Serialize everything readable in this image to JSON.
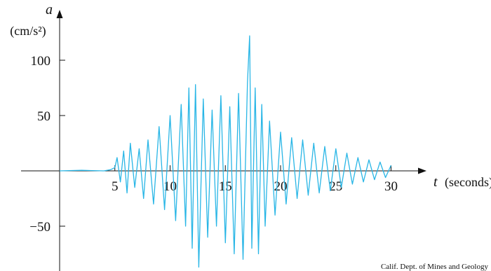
{
  "chart_data": {
    "type": "line",
    "title": "",
    "xlabel": "t",
    "xlabel_unit": "(seconds)",
    "ylabel": "a",
    "ylabel_unit": "(cm/s²)",
    "xlim": [
      -2.8,
      30
    ],
    "ylim": [
      -87,
      123
    ],
    "x_ticks": [
      5,
      10,
      15,
      20,
      25,
      30
    ],
    "y_ticks": [
      100,
      50,
      -50
    ],
    "x_tick_labels": [
      "5",
      "10",
      "15",
      "20",
      "25",
      "30"
    ],
    "y_tick_labels": [
      "100",
      "50",
      "−50"
    ],
    "grid": false,
    "series": [
      {
        "color": "#29b6e6",
        "x": [
          0,
          2,
          4,
          4.6,
          5.0,
          5.2,
          5.5,
          5.8,
          6.1,
          6.4,
          6.8,
          7.2,
          7.6,
          8.0,
          8.5,
          9.0,
          9.5,
          10.0,
          10.5,
          11.0,
          11.4,
          11.7,
          12.0,
          12.3,
          12.6,
          13.0,
          13.4,
          13.8,
          14.2,
          14.6,
          15.0,
          15.4,
          15.8,
          16.2,
          16.6,
          17.0,
          17.2,
          17.4,
          17.7,
          18.0,
          18.3,
          18.6,
          19.0,
          19.5,
          20.0,
          20.5,
          21.0,
          21.5,
          22.0,
          22.5,
          23.0,
          23.5,
          24.0,
          24.5,
          25.0,
          25.5,
          26.0,
          26.5,
          27.0,
          27.5,
          28.0,
          28.5,
          29.0,
          29.5,
          30.0
        ],
        "y": [
          0,
          0.5,
          0,
          1,
          3,
          12,
          -10,
          18,
          -20,
          25,
          -15,
          20,
          -25,
          28,
          -30,
          40,
          -35,
          50,
          -45,
          60,
          -50,
          75,
          -70,
          78,
          -87,
          65,
          -60,
          55,
          -50,
          68,
          -65,
          58,
          -75,
          70,
          -80,
          80,
          122,
          -70,
          75,
          -75,
          60,
          -50,
          45,
          -40,
          35,
          -30,
          30,
          -25,
          28,
          -22,
          25,
          -20,
          22,
          -18,
          20,
          -15,
          16,
          -12,
          12,
          -10,
          10,
          -8,
          8,
          -6,
          5
        ]
      }
    ],
    "credit": "Calif. Dept. of Mines and Geology"
  }
}
